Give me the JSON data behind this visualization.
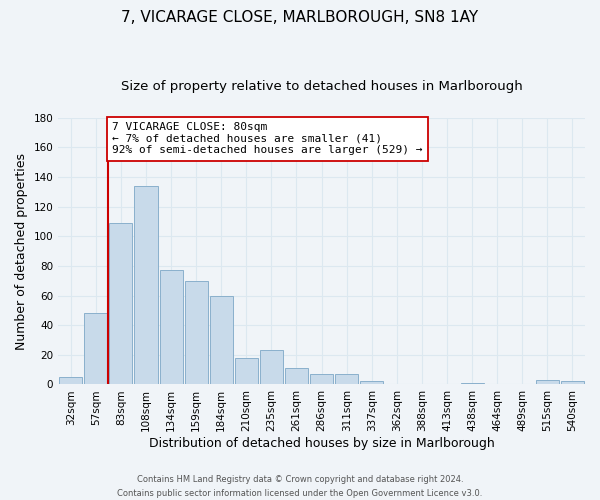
{
  "title": "7, VICARAGE CLOSE, MARLBOROUGH, SN8 1AY",
  "subtitle": "Size of property relative to detached houses in Marlborough",
  "xlabel": "Distribution of detached houses by size in Marlborough",
  "ylabel": "Number of detached properties",
  "bar_color": "#c8daea",
  "bar_edge_color": "#8ab0cc",
  "categories": [
    "32sqm",
    "57sqm",
    "83sqm",
    "108sqm",
    "134sqm",
    "159sqm",
    "184sqm",
    "210sqm",
    "235sqm",
    "261sqm",
    "286sqm",
    "311sqm",
    "337sqm",
    "362sqm",
    "388sqm",
    "413sqm",
    "438sqm",
    "464sqm",
    "489sqm",
    "515sqm",
    "540sqm"
  ],
  "values": [
    5,
    48,
    109,
    134,
    77,
    70,
    60,
    18,
    23,
    11,
    7,
    7,
    2,
    0,
    0,
    0,
    1,
    0,
    0,
    3,
    2
  ],
  "vline_index": 1.5,
  "vline_color": "#cc0000",
  "annotation_line1": "7 VICARAGE CLOSE: 80sqm",
  "annotation_line2": "← 7% of detached houses are smaller (41)",
  "annotation_line3": "92% of semi-detached houses are larger (529) →",
  "annotation_box_color": "#ffffff",
  "annotation_box_edge_color": "#cc0000",
  "ylim": [
    0,
    180
  ],
  "yticks": [
    0,
    20,
    40,
    60,
    80,
    100,
    120,
    140,
    160,
    180
  ],
  "footer_line1": "Contains HM Land Registry data © Crown copyright and database right 2024.",
  "footer_line2": "Contains public sector information licensed under the Open Government Licence v3.0.",
  "bg_color": "#f0f4f8",
  "grid_color": "#dce8f0",
  "title_fontsize": 11,
  "subtitle_fontsize": 9.5,
  "tick_fontsize": 7.5,
  "ylabel_fontsize": 9,
  "xlabel_fontsize": 9,
  "footer_fontsize": 6,
  "annotation_fontsize": 8
}
